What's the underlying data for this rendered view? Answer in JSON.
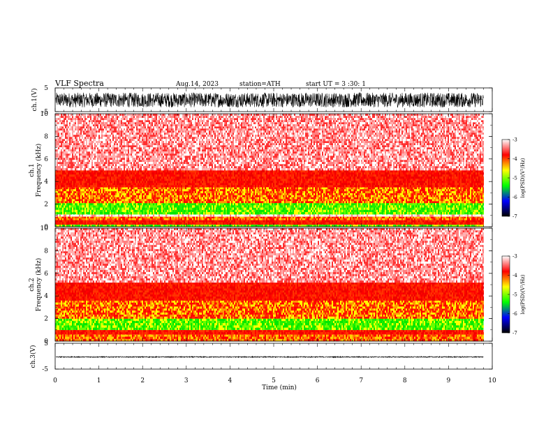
{
  "header": {
    "title": "VLF  Spectra",
    "date": "Aug.14, 2023",
    "station": "station=ATH",
    "start": "start  UT  =    3  :30: 1"
  },
  "chart_data": [
    {
      "id": "ch1-waveform",
      "type": "line",
      "ylabel": "ch.1(V)",
      "ylim": [
        -5,
        5
      ],
      "yticks": [
        "5",
        "-5"
      ],
      "xlim": [
        0,
        10
      ],
      "x_end": 9.8,
      "amplitude_range": [
        -3.2,
        3.0
      ],
      "color": "#000000"
    },
    {
      "id": "ch1-spectrogram",
      "type": "heatmap",
      "ylabel": "ch.1\nFrequency (kHz)",
      "ylim": [
        0,
        10
      ],
      "yticks": [
        "0",
        "2",
        "4",
        "6",
        "8",
        "10"
      ],
      "xlim": [
        0,
        10
      ],
      "x_end": 9.8,
      "bands": [
        {
          "freq": [
            0,
            0.2
          ],
          "level": "green"
        },
        {
          "freq": [
            0.2,
            0.6
          ],
          "level": "red"
        },
        {
          "freq": [
            0.6,
            0.9
          ],
          "level": "orange"
        },
        {
          "freq": [
            0.9,
            1.1
          ],
          "level": "white"
        },
        {
          "freq": [
            1.1,
            2.1
          ],
          "level": "green-yellow"
        },
        {
          "freq": [
            2.1,
            3.5
          ],
          "level": "red-yellow"
        },
        {
          "freq": [
            3.5,
            5.0
          ],
          "level": "red"
        },
        {
          "freq": [
            5.0,
            10
          ],
          "level": "red-white"
        }
      ]
    },
    {
      "id": "ch2-spectrogram",
      "type": "heatmap",
      "ylabel": "ch.2\nFrequency (kHz)",
      "ylim": [
        0,
        10
      ],
      "yticks": [
        "0",
        "2",
        "4",
        "6",
        "8",
        "10"
      ],
      "xlim": [
        0,
        10
      ],
      "x_end": 9.8,
      "bands": [
        {
          "freq": [
            0,
            0.6
          ],
          "level": "orange"
        },
        {
          "freq": [
            0.6,
            1.0
          ],
          "level": "red"
        },
        {
          "freq": [
            1.0,
            2.0
          ],
          "level": "green-yellow"
        },
        {
          "freq": [
            2.0,
            3.6
          ],
          "level": "red-yellow"
        },
        {
          "freq": [
            3.6,
            5.2
          ],
          "level": "red"
        },
        {
          "freq": [
            5.2,
            10
          ],
          "level": "red-white"
        }
      ]
    },
    {
      "id": "ch3-waveform",
      "type": "line",
      "ylabel": "ch.3(V)",
      "ylim": [
        -5,
        5
      ],
      "yticks": [
        "5",
        "-5"
      ],
      "xlim": [
        0,
        10
      ],
      "x_end": 9.8,
      "amplitude_range": [
        -0.5,
        -0.1
      ],
      "color": "#000000"
    }
  ],
  "xaxis": {
    "label": "Time  (min)",
    "ticks": [
      "0",
      "1",
      "2",
      "3",
      "4",
      "5",
      "6",
      "7",
      "8",
      "9",
      "10"
    ]
  },
  "colorbar": {
    "label": "log(PSD)(V²/Hz)",
    "ticks": [
      "-3",
      "-4",
      "-5",
      "-6",
      "-7"
    ],
    "stops": [
      "#ffffff",
      "#ff0000",
      "#ffff00",
      "#00ff00",
      "#0000ff",
      "#000000"
    ]
  }
}
